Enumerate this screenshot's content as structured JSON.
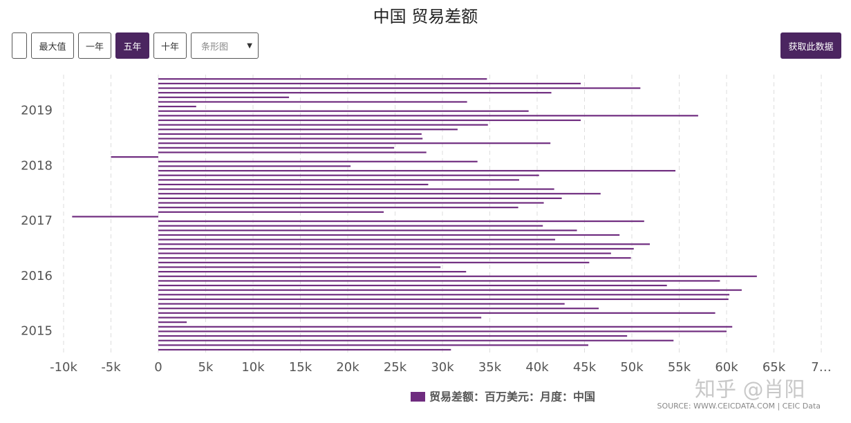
{
  "header": {
    "title": "中国 贸易差额"
  },
  "controls": {
    "buttons": [
      "最大值",
      "一年",
      "五年",
      "十年"
    ],
    "active_button": 2,
    "select": "条形图",
    "download": "获取此数据"
  },
  "chart_data": {
    "type": "bar",
    "orientation": "horizontal",
    "categories": [
      null,
      null,
      null,
      null,
      "2015",
      null,
      null,
      null,
      null,
      null,
      null,
      null,
      null,
      null,
      null,
      null,
      "2016",
      null,
      null,
      null,
      null,
      null,
      null,
      null,
      null,
      null,
      null,
      null,
      "2017",
      null,
      null,
      null,
      null,
      null,
      null,
      null,
      null,
      null,
      null,
      null,
      "2018",
      null,
      null,
      null,
      null,
      null,
      null,
      null,
      null,
      null,
      null,
      null,
      "2019",
      null,
      null,
      null,
      null,
      null,
      null,
      null
    ],
    "series": [
      {
        "name": "贸易差额：百万美元：月度：中国",
        "color": "#6f2c7f",
        "values": [
          30900,
          45400,
          54400,
          49500,
          60000,
          60600,
          3000,
          34100,
          58800,
          46500,
          42900,
          60200,
          60300,
          61600,
          53700,
          59300,
          63200,
          32500,
          29800,
          45500,
          49900,
          47800,
          50200,
          51900,
          41900,
          48700,
          44200,
          40600,
          51300,
          -9100,
          23800,
          38000,
          40700,
          42600,
          46700,
          41800,
          28500,
          38100,
          40200,
          54600,
          20300,
          33700,
          -5000,
          28300,
          24900,
          41400,
          27900,
          27800,
          31600,
          34800,
          44600,
          57000,
          39100,
          4000,
          32600,
          13800,
          41500,
          50900,
          44600,
          34700
        ]
      }
    ],
    "xlim": [
      -10000,
      70000
    ],
    "xticks": [
      {
        "value": -10000,
        "label": "-10k"
      },
      {
        "value": -5000,
        "label": "-5k"
      },
      0,
      {
        "value": 5000,
        "label": "5k"
      },
      {
        "value": 10000,
        "label": "10k"
      },
      {
        "value": 15000,
        "label": "15k"
      },
      {
        "value": 20000,
        "label": "20k"
      },
      {
        "value": 25000,
        "label": "25k"
      },
      {
        "value": 30000,
        "label": "30k"
      },
      {
        "value": 35000,
        "label": "35k"
      },
      {
        "value": 40000,
        "label": "40k"
      },
      {
        "value": 45000,
        "label": "45k"
      },
      {
        "value": 50000,
        "label": "50k"
      },
      {
        "value": 55000,
        "label": "55k"
      },
      {
        "value": 60000,
        "label": "60k"
      },
      {
        "value": 65000,
        "label": "65k"
      },
      {
        "value": 70000,
        "label": "7…"
      }
    ],
    "grid": true
  },
  "footer": {
    "source": "SOURCE: WWW.CEICDATA.COM | CEIC Data",
    "watermark": "知乎 @肖阳"
  }
}
